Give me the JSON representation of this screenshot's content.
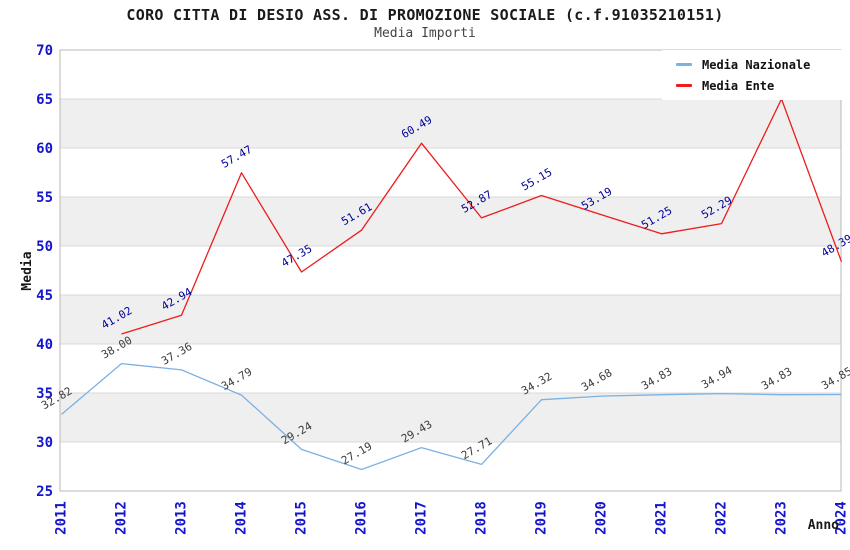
{
  "header": {
    "title": "CORO CITTA DI DESIO ASS. DI PROMOZIONE SOCIALE (c.f.91035210151)",
    "subtitle": "Media Importi"
  },
  "legend": {
    "items": [
      {
        "label": "Media Nazionale",
        "color": "#7CB1E3"
      },
      {
        "label": "Media Ente",
        "color": "#EE1C1C"
      }
    ]
  },
  "axes": {
    "y_label": "Media",
    "x_label": "Anno",
    "y_ticks": [
      70,
      65,
      60,
      55,
      50,
      45,
      40,
      35,
      30,
      25
    ],
    "x_ticks": [
      "2011",
      "2012",
      "2013",
      "2014",
      "2015",
      "2016",
      "2017",
      "2018",
      "2019",
      "2020",
      "2021",
      "2022",
      "2023",
      "2024"
    ],
    "tick_color": "#1515CD"
  },
  "chart_data": {
    "type": "line",
    "title": "CORO CITTA DI DESIO ASS. DI PROMOZIONE SOCIALE (c.f.91035210151)",
    "subtitle": "Media Importi",
    "xlabel": "Anno",
    "ylabel": "Media",
    "x": [
      2011,
      2012,
      2013,
      2014,
      2015,
      2016,
      2017,
      2018,
      2019,
      2020,
      2021,
      2022,
      2023,
      2024
    ],
    "ylim": [
      25,
      70
    ],
    "ytick_step": 5,
    "grid": "horizontal",
    "band_colors": [
      "#ffffff",
      "#efefef"
    ],
    "legend_position": "top-right",
    "series": [
      {
        "name": "Media Nazionale",
        "color": "#7CB1E3",
        "label_color": "#3C3C3C",
        "values": [
          32.82,
          38.0,
          37.36,
          34.79,
          29.24,
          27.19,
          29.43,
          27.71,
          34.32,
          34.68,
          34.83,
          34.94,
          34.83,
          34.85
        ],
        "point_labels": [
          "32.82",
          "38.00",
          "37.36",
          "34.79",
          "29.24",
          "27.19",
          "29.43",
          "27.71",
          "34.32",
          "34.68",
          "34.83",
          "34.94",
          "34.83",
          "34.85"
        ]
      },
      {
        "name": "Media Ente",
        "color": "#EE1C1C",
        "label_color": "#00009A",
        "values": [
          null,
          41.02,
          42.94,
          57.47,
          47.35,
          51.61,
          60.49,
          52.87,
          55.15,
          53.19,
          51.25,
          52.29,
          65.0,
          48.39
        ],
        "point_labels": [
          "",
          "41.02",
          "42.94",
          "57.47",
          "47.35",
          "51.61",
          "60.49",
          "52.87",
          "55.15",
          "53.19",
          "51.25",
          "52.29",
          "",
          "48.39"
        ]
      }
    ]
  }
}
